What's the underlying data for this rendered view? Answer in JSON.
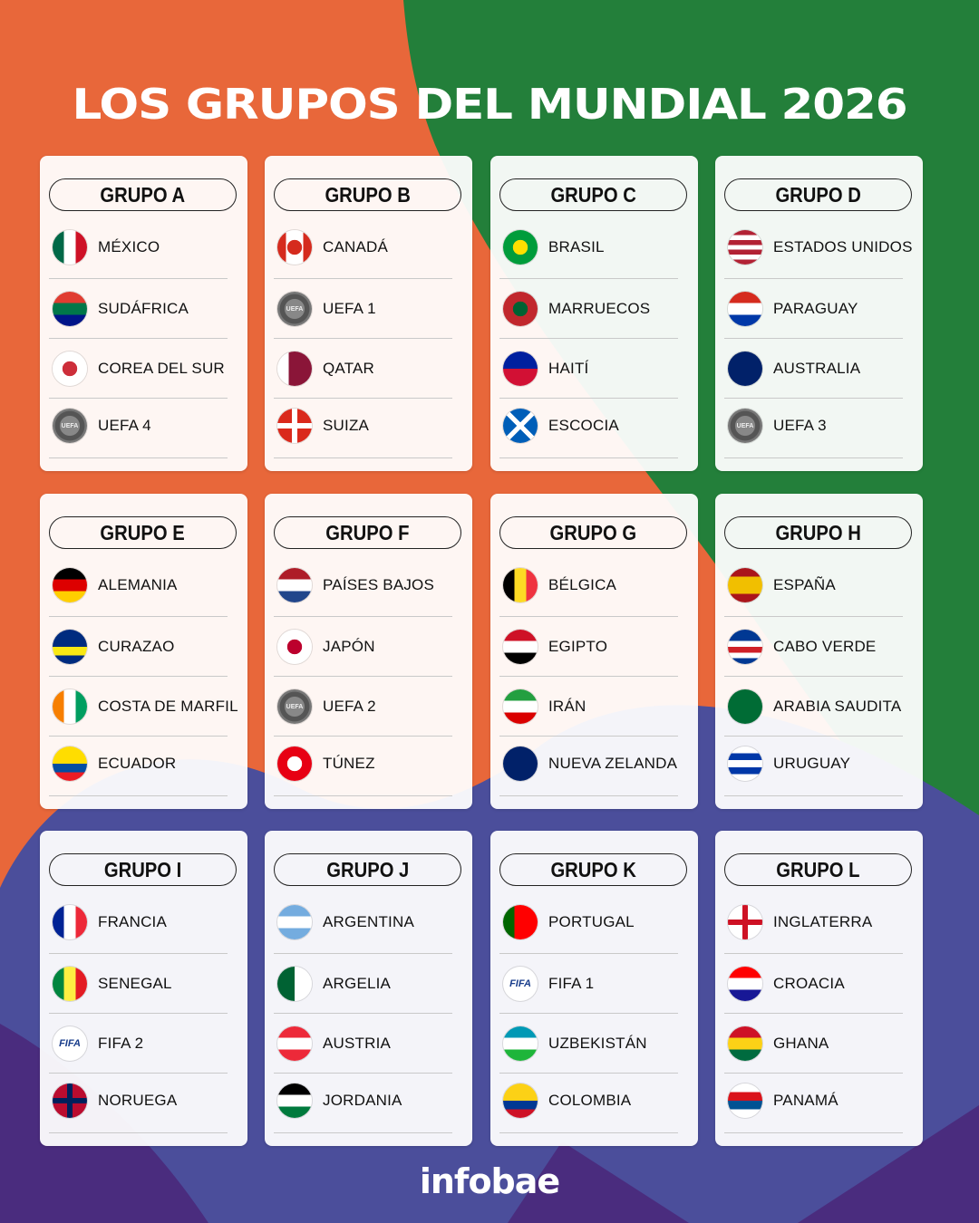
{
  "title": "LOS GRUPOS DEL MUNDIAL 2026",
  "brand": "infobae",
  "colors": {
    "orange": "#E8673A",
    "green": "#237F3A",
    "blue": "#4B4E9B",
    "purple": "#4A2C7E"
  },
  "groups": [
    {
      "label": "GRUPO A",
      "teams": [
        {
          "name": "MÉXICO",
          "flag": {
            "dir": "v",
            "colors": [
              "#006847",
              "#ffffff",
              "#CE1126"
            ]
          }
        },
        {
          "name": "SUDÁFRICA",
          "flag": {
            "dir": "h",
            "colors": [
              "#E03C31",
              "#007749",
              "#001489"
            ]
          }
        },
        {
          "name": "COREA DEL SUR",
          "flag": {
            "dir": "h",
            "colors": [
              "#ffffff"
            ],
            "dot": "#CD2E3A"
          }
        },
        {
          "name": "UEFA 4",
          "flag": {
            "badge": "uefa"
          }
        }
      ]
    },
    {
      "label": "GRUPO B",
      "teams": [
        {
          "name": "CANADÁ",
          "flag": {
            "dir": "v",
            "colors": [
              "#D52B1E",
              "#ffffff",
              "#ffffff",
              "#D52B1E"
            ],
            "dot": "#D52B1E"
          }
        },
        {
          "name": "UEFA 1",
          "flag": {
            "badge": "uefa"
          }
        },
        {
          "name": "QATAR",
          "flag": {
            "dir": "v",
            "colors": [
              "#ffffff",
              "#8A1538",
              "#8A1538"
            ]
          }
        },
        {
          "name": "SUIZA",
          "flag": {
            "dir": "h",
            "colors": [
              "#DA291C"
            ],
            "cross": "#ffffff"
          }
        }
      ]
    },
    {
      "label": "GRUPO C",
      "teams": [
        {
          "name": "BRASIL",
          "flag": {
            "dir": "h",
            "colors": [
              "#009C3B"
            ],
            "dot": "#FFDF00"
          }
        },
        {
          "name": "MARRUECOS",
          "flag": {
            "dir": "h",
            "colors": [
              "#C1272D"
            ],
            "dot": "#006233"
          }
        },
        {
          "name": "HAITÍ",
          "flag": {
            "dir": "h",
            "colors": [
              "#00209F",
              "#D21034"
            ]
          }
        },
        {
          "name": "ESCOCIA",
          "flag": {
            "dir": "h",
            "colors": [
              "#005EB8"
            ],
            "saltire": "#ffffff"
          }
        }
      ]
    },
    {
      "label": "GRUPO D",
      "teams": [
        {
          "name": "ESTADOS UNIDOS",
          "flag": {
            "dir": "h",
            "colors": [
              "#B22234",
              "#ffffff",
              "#B22234",
              "#ffffff",
              "#B22234",
              "#ffffff",
              "#B22234"
            ]
          }
        },
        {
          "name": "PARAGUAY",
          "flag": {
            "dir": "h",
            "colors": [
              "#D52B1E",
              "#ffffff",
              "#0038A8"
            ]
          }
        },
        {
          "name": "AUSTRALIA",
          "flag": {
            "dir": "h",
            "colors": [
              "#012169"
            ]
          }
        },
        {
          "name": "UEFA 3",
          "flag": {
            "badge": "uefa"
          }
        }
      ]
    },
    {
      "label": "GRUPO E",
      "teams": [
        {
          "name": "ALEMANIA",
          "flag": {
            "dir": "h",
            "colors": [
              "#000000",
              "#DD0000",
              "#FFCE00"
            ]
          }
        },
        {
          "name": "CURAZAO",
          "flag": {
            "dir": "h",
            "colors": [
              "#002B7F",
              "#002B7F",
              "#F9E814",
              "#002B7F"
            ]
          }
        },
        {
          "name": "COSTA DE MARFIL",
          "flag": {
            "dir": "v",
            "colors": [
              "#F77F00",
              "#ffffff",
              "#009E60"
            ]
          }
        },
        {
          "name": "ECUADOR",
          "flag": {
            "dir": "h",
            "colors": [
              "#FFDD00",
              "#FFDD00",
              "#034EA2",
              "#ED1C24"
            ]
          }
        }
      ]
    },
    {
      "label": "GRUPO F",
      "teams": [
        {
          "name": "PAÍSES BAJOS",
          "flag": {
            "dir": "h",
            "colors": [
              "#AE1C28",
              "#ffffff",
              "#21468B"
            ]
          }
        },
        {
          "name": "JAPÓN",
          "flag": {
            "dir": "h",
            "colors": [
              "#ffffff"
            ],
            "dot": "#BC002D"
          }
        },
        {
          "name": "UEFA 2",
          "flag": {
            "badge": "uefa"
          }
        },
        {
          "name": "TÚNEZ",
          "flag": {
            "dir": "h",
            "colors": [
              "#E70013"
            ],
            "dot": "#ffffff"
          }
        }
      ]
    },
    {
      "label": "GRUPO G",
      "teams": [
        {
          "name": "BÉLGICA",
          "flag": {
            "dir": "v",
            "colors": [
              "#000000",
              "#FDDA24",
              "#EF3340"
            ]
          }
        },
        {
          "name": "EGIPTO",
          "flag": {
            "dir": "h",
            "colors": [
              "#CE1126",
              "#ffffff",
              "#000000"
            ]
          }
        },
        {
          "name": "IRÁN",
          "flag": {
            "dir": "h",
            "colors": [
              "#239F40",
              "#ffffff",
              "#DA0000"
            ]
          }
        },
        {
          "name": "NUEVA ZELANDA",
          "flag": {
            "dir": "h",
            "colors": [
              "#012169"
            ]
          }
        }
      ]
    },
    {
      "label": "GRUPO H",
      "teams": [
        {
          "name": "ESPAÑA",
          "flag": {
            "dir": "h",
            "colors": [
              "#AA151B",
              "#F1BF00",
              "#F1BF00",
              "#AA151B"
            ]
          }
        },
        {
          "name": "CABO VERDE",
          "flag": {
            "dir": "h",
            "colors": [
              "#003893",
              "#003893",
              "#ffffff",
              "#CF2027",
              "#ffffff",
              "#003893"
            ]
          }
        },
        {
          "name": "ARABIA SAUDITA",
          "flag": {
            "dir": "h",
            "colors": [
              "#006C35"
            ]
          }
        },
        {
          "name": "URUGUAY",
          "flag": {
            "dir": "h",
            "colors": [
              "#ffffff",
              "#0038A8",
              "#ffffff",
              "#0038A8",
              "#ffffff"
            ]
          }
        }
      ]
    },
    {
      "label": "GRUPO I",
      "teams": [
        {
          "name": "FRANCIA",
          "flag": {
            "dir": "v",
            "colors": [
              "#002395",
              "#ffffff",
              "#ED2939"
            ]
          }
        },
        {
          "name": "SENEGAL",
          "flag": {
            "dir": "v",
            "colors": [
              "#00853F",
              "#FDEF42",
              "#E31B23"
            ]
          }
        },
        {
          "name": "FIFA 2",
          "flag": {
            "badge": "fifa"
          }
        },
        {
          "name": "NORUEGA",
          "flag": {
            "dir": "h",
            "colors": [
              "#BA0C2F"
            ],
            "cross": "#00205B"
          }
        }
      ]
    },
    {
      "label": "GRUPO J",
      "teams": [
        {
          "name": "ARGENTINA",
          "flag": {
            "dir": "h",
            "colors": [
              "#74ACDF",
              "#ffffff",
              "#74ACDF"
            ]
          }
        },
        {
          "name": "ARGELIA",
          "flag": {
            "dir": "v",
            "colors": [
              "#006233",
              "#ffffff"
            ]
          }
        },
        {
          "name": "AUSTRIA",
          "flag": {
            "dir": "h",
            "colors": [
              "#ED2939",
              "#ffffff",
              "#ED2939"
            ]
          }
        },
        {
          "name": "JORDANIA",
          "flag": {
            "dir": "h",
            "colors": [
              "#000000",
              "#ffffff",
              "#007A3D"
            ]
          }
        }
      ]
    },
    {
      "label": "GRUPO K",
      "teams": [
        {
          "name": "PORTUGAL",
          "flag": {
            "dir": "v",
            "colors": [
              "#006600",
              "#FF0000",
              "#FF0000"
            ]
          }
        },
        {
          "name": "FIFA 1",
          "flag": {
            "badge": "fifa"
          }
        },
        {
          "name": "UZBEKISTÁN",
          "flag": {
            "dir": "h",
            "colors": [
              "#0099B5",
              "#ffffff",
              "#1EB53A"
            ]
          }
        },
        {
          "name": "COLOMBIA",
          "flag": {
            "dir": "h",
            "colors": [
              "#FCD116",
              "#FCD116",
              "#003893",
              "#CE1126"
            ]
          }
        }
      ]
    },
    {
      "label": "GRUPO L",
      "teams": [
        {
          "name": "INGLATERRA",
          "flag": {
            "dir": "h",
            "colors": [
              "#ffffff"
            ],
            "cross": "#CE1124"
          }
        },
        {
          "name": "CROACIA",
          "flag": {
            "dir": "h",
            "colors": [
              "#FF0000",
              "#ffffff",
              "#171796"
            ]
          }
        },
        {
          "name": "GHANA",
          "flag": {
            "dir": "h",
            "colors": [
              "#CE1126",
              "#FCD116",
              "#006B3F"
            ]
          }
        },
        {
          "name": "PANAMÁ",
          "flag": {
            "dir": "h",
            "colors": [
              "#ffffff",
              "#DA121A",
              "#005293",
              "#ffffff"
            ],
            "quad": true
          }
        }
      ]
    }
  ]
}
